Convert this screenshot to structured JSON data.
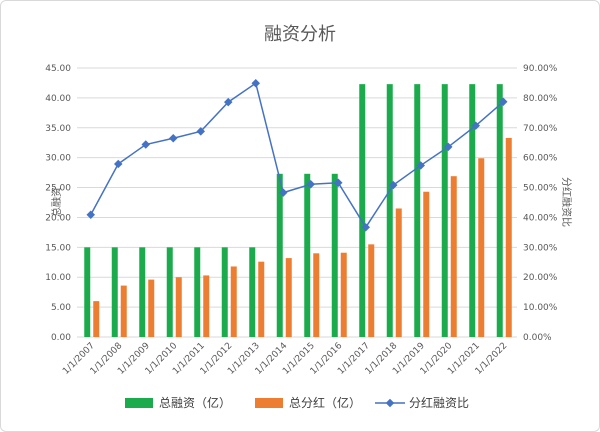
{
  "chart_data": {
    "type": "bar+line",
    "title": "融资分析",
    "ylabel_left": "总融资",
    "ylabel_right": "分红融资比",
    "categories": [
      "1/1/2007",
      "1/1/2008",
      "1/1/2009",
      "1/1/2010",
      "1/1/2011",
      "1/1/2012",
      "1/1/2013",
      "1/1/2014",
      "1/1/2015",
      "1/1/2016",
      "1/1/2017",
      "1/1/2018",
      "1/1/2019",
      "1/1/2020",
      "1/1/2021",
      "1/1/2022"
    ],
    "left_axis": {
      "min": 0,
      "max": 45,
      "step": 5,
      "ticks": [
        "0.00",
        "5.00",
        "10.00",
        "15.00",
        "20.00",
        "25.00",
        "30.00",
        "35.00",
        "40.00",
        "45.00"
      ]
    },
    "right_axis": {
      "min": 0,
      "max": 90,
      "step": 10,
      "ticks": [
        "0.00%",
        "10.00%",
        "20.00%",
        "30.00%",
        "40.00%",
        "50.00%",
        "60.00%",
        "70.00%",
        "80.00%",
        "90.00%"
      ]
    },
    "series": [
      {
        "name": "总融资（亿）",
        "kind": "bar",
        "axis": "left",
        "color": "#1bab4c",
        "values": [
          15.0,
          15.0,
          15.0,
          15.0,
          15.0,
          15.0,
          15.0,
          27.3,
          27.3,
          27.3,
          42.3,
          42.3,
          42.3,
          42.3,
          42.3,
          42.3
        ]
      },
      {
        "name": "总分红（亿）",
        "kind": "bar",
        "axis": "left",
        "color": "#ed7d31",
        "values": [
          6.0,
          8.6,
          9.6,
          10.0,
          10.3,
          11.8,
          12.6,
          13.2,
          14.0,
          14.1,
          15.5,
          21.5,
          24.3,
          26.9,
          29.9,
          33.3
        ]
      },
      {
        "name": "分红融资比",
        "kind": "line",
        "axis": "right",
        "color": "#4472c4",
        "values": [
          40.9,
          57.9,
          64.4,
          66.5,
          68.8,
          78.6,
          84.9,
          48.3,
          51.1,
          51.6,
          36.7,
          50.8,
          57.4,
          63.6,
          70.7,
          78.7
        ]
      }
    ],
    "legend_position": "bottom",
    "grid": true
  }
}
